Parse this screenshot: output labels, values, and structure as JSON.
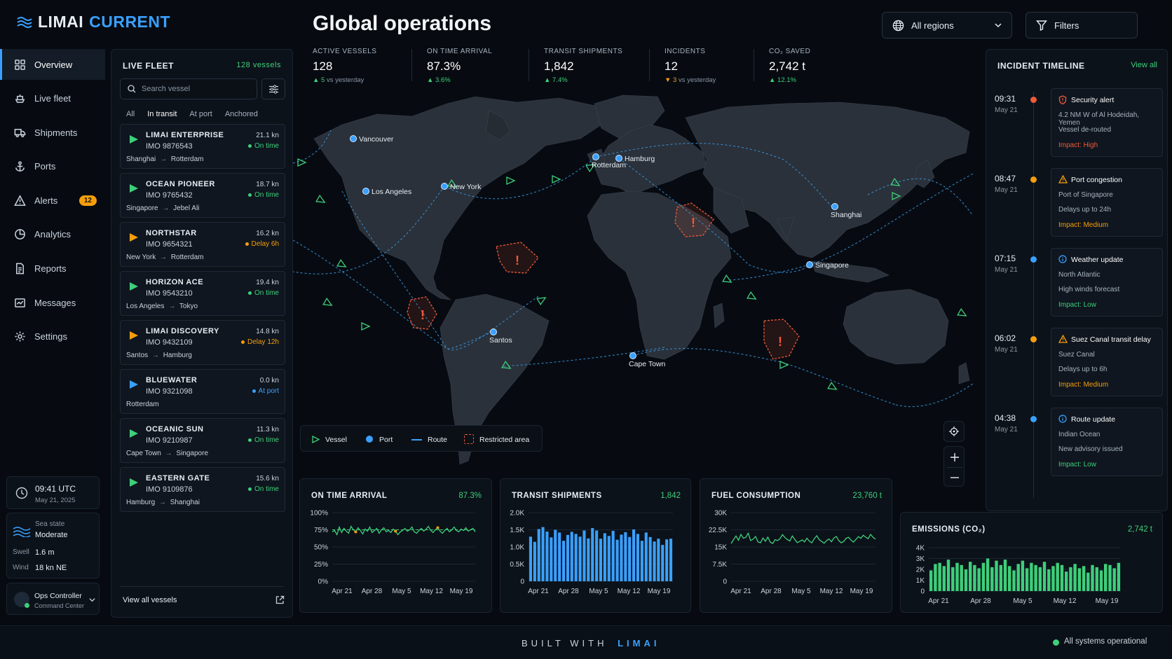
{
  "brand": {
    "name_a": "LIMAI",
    "name_b": "CURRENT"
  },
  "header": {
    "title": "Global operations",
    "region_select": "All regions",
    "filters_label": "Filters"
  },
  "sidebar": {
    "items": [
      {
        "label": "Overview",
        "icon": "grid-icon"
      },
      {
        "label": "Live fleet",
        "icon": "ship-icon"
      },
      {
        "label": "Shipments",
        "icon": "truck-icon"
      },
      {
        "label": "Ports",
        "icon": "anchor-icon"
      },
      {
        "label": "Alerts",
        "icon": "alert-icon",
        "badge": "12"
      },
      {
        "label": "Analytics",
        "icon": "chart-icon"
      },
      {
        "label": "Reports",
        "icon": "report-icon"
      },
      {
        "label": "Messages",
        "icon": "message-icon"
      },
      {
        "label": "Settings",
        "icon": "gear-icon"
      }
    ],
    "clock": {
      "time": "09:41 UTC",
      "date": "May 21, 2025"
    },
    "sea": {
      "label": "Sea state",
      "value": "Moderate",
      "swell_label": "Swell",
      "swell": "1.6 m",
      "wind_label": "Wind",
      "wind": "18 kn NE"
    },
    "user": {
      "name": "Ops Controller",
      "role": "Command Center"
    }
  },
  "fleet": {
    "title": "LIVE FLEET",
    "count": "128 vessels",
    "search_placeholder": "Search vessel",
    "tabs": [
      "All",
      "In transit",
      "At port",
      "Anchored"
    ],
    "vessels": [
      {
        "name": "LIMAI ENTERPRISE",
        "imo": "IMO 9876543",
        "speed": "21.1 kn",
        "status": "On time",
        "from": "Shanghai",
        "to": "Rotterdam"
      },
      {
        "name": "OCEAN PIONEER",
        "imo": "IMO 9765432",
        "speed": "18.7 kn",
        "status": "On time",
        "from": "Singapore",
        "to": "Jebel Ali"
      },
      {
        "name": "NORTHSTAR",
        "imo": "IMO 9654321",
        "speed": "16.2 kn",
        "status": "Delay 6h",
        "from": "New York",
        "to": "Rotterdam"
      },
      {
        "name": "HORIZON ACE",
        "imo": "IMO 9543210",
        "speed": "19.4 kn",
        "status": "On time",
        "from": "Los Angeles",
        "to": "Tokyo"
      },
      {
        "name": "LIMAI DISCOVERY",
        "imo": "IMO 9432109",
        "speed": "14.8 kn",
        "status": "Delay 12h",
        "from": "Santos",
        "to": "Hamburg"
      },
      {
        "name": "BLUEWATER",
        "imo": "IMO 9321098",
        "speed": "0.0 kn",
        "status": "At port",
        "from": "Rotterdam",
        "to": ""
      },
      {
        "name": "OCEANIC SUN",
        "imo": "IMO 9210987",
        "speed": "11.3 kn",
        "status": "On time",
        "from": "Cape Town",
        "to": "Singapore"
      },
      {
        "name": "EASTERN GATE",
        "imo": "IMO 9109876",
        "speed": "15.6 kn",
        "status": "On time",
        "from": "Hamburg",
        "to": "Shanghai"
      }
    ],
    "view_all": "View all vessels"
  },
  "kpis": [
    {
      "label": "ACTIVE VESSELS",
      "value": "128",
      "delta": "5",
      "note": "vs yesterday",
      "dir": "up"
    },
    {
      "label": "ON TIME ARRIVAL",
      "value": "87.3%",
      "delta": "3.6%",
      "note": "",
      "dir": "up"
    },
    {
      "label": "TRANSIT SHIPMENTS",
      "value": "1,842",
      "delta": "7.4%",
      "note": "",
      "dir": "up"
    },
    {
      "label": "INCIDENTS",
      "value": "12",
      "delta": "3",
      "note": "vs yesterday",
      "dir": "down"
    },
    {
      "label": "CO₂ SAVED",
      "value": "2,742 t",
      "delta": "12.1%",
      "note": "",
      "dir": "up"
    }
  ],
  "map": {
    "ports": [
      "Vancouver",
      "Los Angeles",
      "New York",
      "Rotterdam",
      "Hamburg",
      "Shanghai",
      "Singapore",
      "Santos",
      "Cape Town"
    ],
    "legend": {
      "vessel": "Vessel",
      "port": "Port",
      "route": "Route",
      "restricted": "Restricted area"
    }
  },
  "timeline": {
    "title": "INCIDENT TIMELINE",
    "view_all": "View all",
    "items": [
      {
        "time": "09:31",
        "date": "May 21",
        "title": "Security alert",
        "line1": "4.2 NM W of Al Hodeidah, Yemen",
        "line2": "Vessel de-routed",
        "impact": "Impact: High",
        "kind": "high"
      },
      {
        "time": "08:47",
        "date": "May 21",
        "title": "Port congestion",
        "line1": "Port of Singapore",
        "line2": "Delays up to 24h",
        "impact": "Impact: Medium",
        "kind": "medium"
      },
      {
        "time": "07:15",
        "date": "May 21",
        "title": "Weather update",
        "line1": "North Atlantic",
        "line2": "High winds forecast",
        "impact": "Impact: Low",
        "kind": "low"
      },
      {
        "time": "06:02",
        "date": "May 21",
        "title": "Suez Canal transit delay",
        "line1": "Suez Canal",
        "line2": "Delays up to 6h",
        "impact": "Impact: Medium",
        "kind": "medium"
      },
      {
        "time": "04:38",
        "date": "May 21",
        "title": "Route update",
        "line1": "Indian Ocean",
        "line2": "New advisory issued",
        "impact": "Impact: Low",
        "kind": "low"
      }
    ]
  },
  "chart_data": [
    {
      "type": "line",
      "title": "ON TIME ARRIVAL",
      "headline": "87.3%",
      "x_ticks": [
        "Apr 21",
        "Apr 28",
        "May 5",
        "May 12",
        "May 19"
      ],
      "y_ticks": [
        "100%",
        "75%",
        "50%",
        "25%",
        "0%"
      ],
      "ylim": [
        0,
        100
      ],
      "target": 75,
      "values": [
        72,
        74,
        68,
        79,
        71,
        77,
        73,
        70,
        80,
        75,
        72,
        78,
        74,
        69,
        76,
        73,
        79,
        71,
        74,
        77,
        70,
        75,
        78,
        72,
        74,
        71,
        76,
        73,
        68,
        72,
        74,
        77,
        73,
        75,
        79,
        72,
        70,
        74,
        77,
        73,
        76,
        80,
        74,
        71,
        75,
        78,
        73,
        70,
        74,
        77,
        72,
        75,
        79,
        74,
        72,
        76,
        74,
        78,
        73,
        75,
        77,
        72
      ]
    },
    {
      "type": "bar",
      "title": "TRANSIT SHIPMENTS",
      "headline": "1,842",
      "x_ticks": [
        "Apr 21",
        "Apr 28",
        "May 5",
        "May 12",
        "May 19"
      ],
      "y_ticks": [
        "2.0K",
        "1.5K",
        "1.0K",
        "0.5K",
        "0"
      ],
      "ylim": [
        0,
        2000
      ],
      "values": [
        1300,
        1150,
        1520,
        1580,
        1450,
        1280,
        1500,
        1420,
        1180,
        1350,
        1440,
        1380,
        1300,
        1480,
        1250,
        1550,
        1480,
        1240,
        1400,
        1320,
        1470,
        1210,
        1360,
        1430,
        1290,
        1510,
        1380,
        1180,
        1420,
        1290,
        1160,
        1240,
        1060,
        1220,
        1240
      ]
    },
    {
      "type": "line",
      "title": "FUEL CONSUMPTION",
      "headline": "23,760 t",
      "x_ticks": [
        "Apr 21",
        "Apr 28",
        "May 5",
        "May 12",
        "May 19"
      ],
      "y_ticks": [
        "30K",
        "22.5K",
        "15K",
        "7.5K",
        "0"
      ],
      "ylim": [
        0,
        30000
      ],
      "values": [
        16500,
        18200,
        19800,
        17900,
        20500,
        18800,
        19200,
        21000,
        17800,
        18400,
        19600,
        17200,
        16800,
        18900,
        17500,
        19300,
        17100,
        16500,
        18200,
        17800,
        18600,
        20400,
        19100,
        18200,
        17600,
        19800,
        18300,
        16900,
        17400,
        18100,
        17200,
        18800,
        17500,
        16800,
        18600,
        19900,
        18200,
        17400,
        16600,
        17800,
        18500,
        17300,
        18900,
        19600,
        17800,
        16800,
        17400,
        18800,
        19200,
        18000,
        17100,
        18300,
        19500,
        18800,
        20100,
        19300,
        18600,
        20500,
        19200,
        18400
      ]
    },
    {
      "type": "bar",
      "title": "EMISSIONS (CO₂)",
      "headline": "2,742 t",
      "x_ticks": [
        "Apr 21",
        "Apr 28",
        "May 5",
        "May 12",
        "May 19"
      ],
      "y_ticks": [
        "4K",
        "3K",
        "2K",
        "1K",
        "0"
      ],
      "ylim": [
        0,
        4000
      ],
      "values": [
        1900,
        2500,
        2600,
        2300,
        2900,
        2200,
        2600,
        2400,
        2000,
        2700,
        2400,
        2100,
        2600,
        3000,
        2200,
        2800,
        2400,
        2900,
        2300,
        1900,
        2500,
        2800,
        2100,
        2600,
        2400,
        2200,
        2700,
        2000,
        2300,
        2600,
        2400,
        1800,
        2200,
        2500,
        2100,
        2300,
        1700,
        2400,
        2200,
        1900,
        2500,
        2400,
        2100,
        2600
      ]
    }
  ],
  "footer": {
    "built": "BUILT WITH",
    "brand": "LIMAI",
    "status": "All systems operational"
  }
}
